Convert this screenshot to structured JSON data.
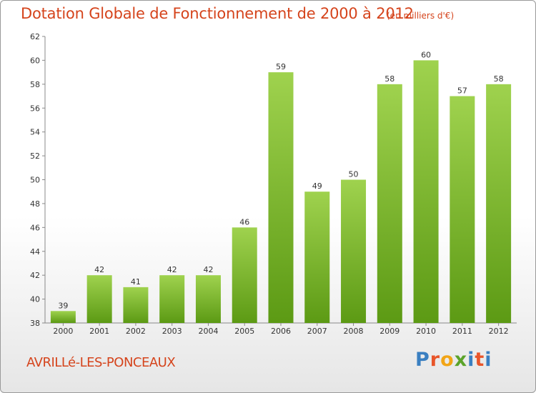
{
  "header": {
    "title": "Dotation Globale de Fonctionnement de 2000 à 2012",
    "unit": "(en milliers d'€)"
  },
  "footer": {
    "city": "AVRILLé-LES-PONCEAUX",
    "brand": "Proxiti",
    "brand_colors": [
      "#3a7fc1",
      "#e8552a",
      "#f2a516",
      "#5ba32a",
      "#3a7fc1",
      "#e8552a",
      "#3a7fc1"
    ]
  },
  "chart_data": {
    "type": "bar",
    "title": "Dotation Globale de Fonctionnement de 2000 à 2012",
    "subtitle": "(en milliers d'€)",
    "xlabel": "",
    "ylabel": "",
    "categories": [
      "2000",
      "2001",
      "2002",
      "2003",
      "2004",
      "2005",
      "2006",
      "2007",
      "2008",
      "2009",
      "2010",
      "2011",
      "2012"
    ],
    "values": [
      39,
      42,
      41,
      42,
      42,
      46,
      59,
      49,
      50,
      58,
      60,
      57,
      58
    ],
    "ylim": [
      38,
      62
    ],
    "yticks": [
      38,
      40,
      42,
      44,
      46,
      48,
      50,
      52,
      54,
      56,
      58,
      60,
      62
    ],
    "grid": false,
    "bar_color_top": "#9fd24e",
    "bar_color_bottom": "#5c9a14",
    "axis_color": "#888888"
  }
}
